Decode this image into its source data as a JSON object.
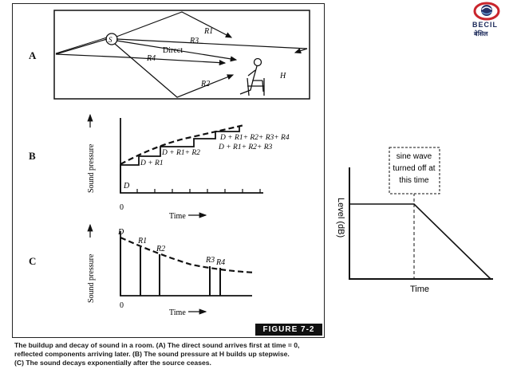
{
  "logo": {
    "name": "BECIL",
    "subtext": "बेसिल",
    "icon": "becil-globe-logo"
  },
  "figure": {
    "badge": "FIGURE 7-2",
    "panel_a": {
      "letter": "A",
      "source_label": "S",
      "listener_label": "H",
      "ray_labels": {
        "r1": "R1",
        "r2": "R2",
        "r3": "R3",
        "r4": "R4",
        "direct": "Direct"
      }
    },
    "panel_b": {
      "letter": "B",
      "ylabel": "Sound pressure",
      "xlabel": "Time",
      "origin": "0",
      "step_labels": [
        "D",
        "D + R1",
        "D + R1+ R2",
        "D + R1+ R2+ R3",
        "D + R1+ R2+ R3+ R4"
      ]
    },
    "panel_c": {
      "letter": "C",
      "ylabel": "Sound pressure",
      "xlabel": "Time",
      "origin": "0",
      "pulse_labels": [
        "D",
        "R1",
        "R2",
        "R3",
        "R4"
      ]
    }
  },
  "caption": {
    "line1": "The buildup and decay of sound in a room. (A) The direct sound arrives first at time = 0,",
    "line2": "reflected components arriving later. (B) The sound pressure at H builds up stepwise.",
    "line3": "(C) The sound decays exponentially after the source ceases."
  },
  "decay_plot": {
    "ylabel": "Level (dB)",
    "xlabel": "Time",
    "annotation": [
      "sine wave",
      "turned off at",
      "this time"
    ]
  }
}
